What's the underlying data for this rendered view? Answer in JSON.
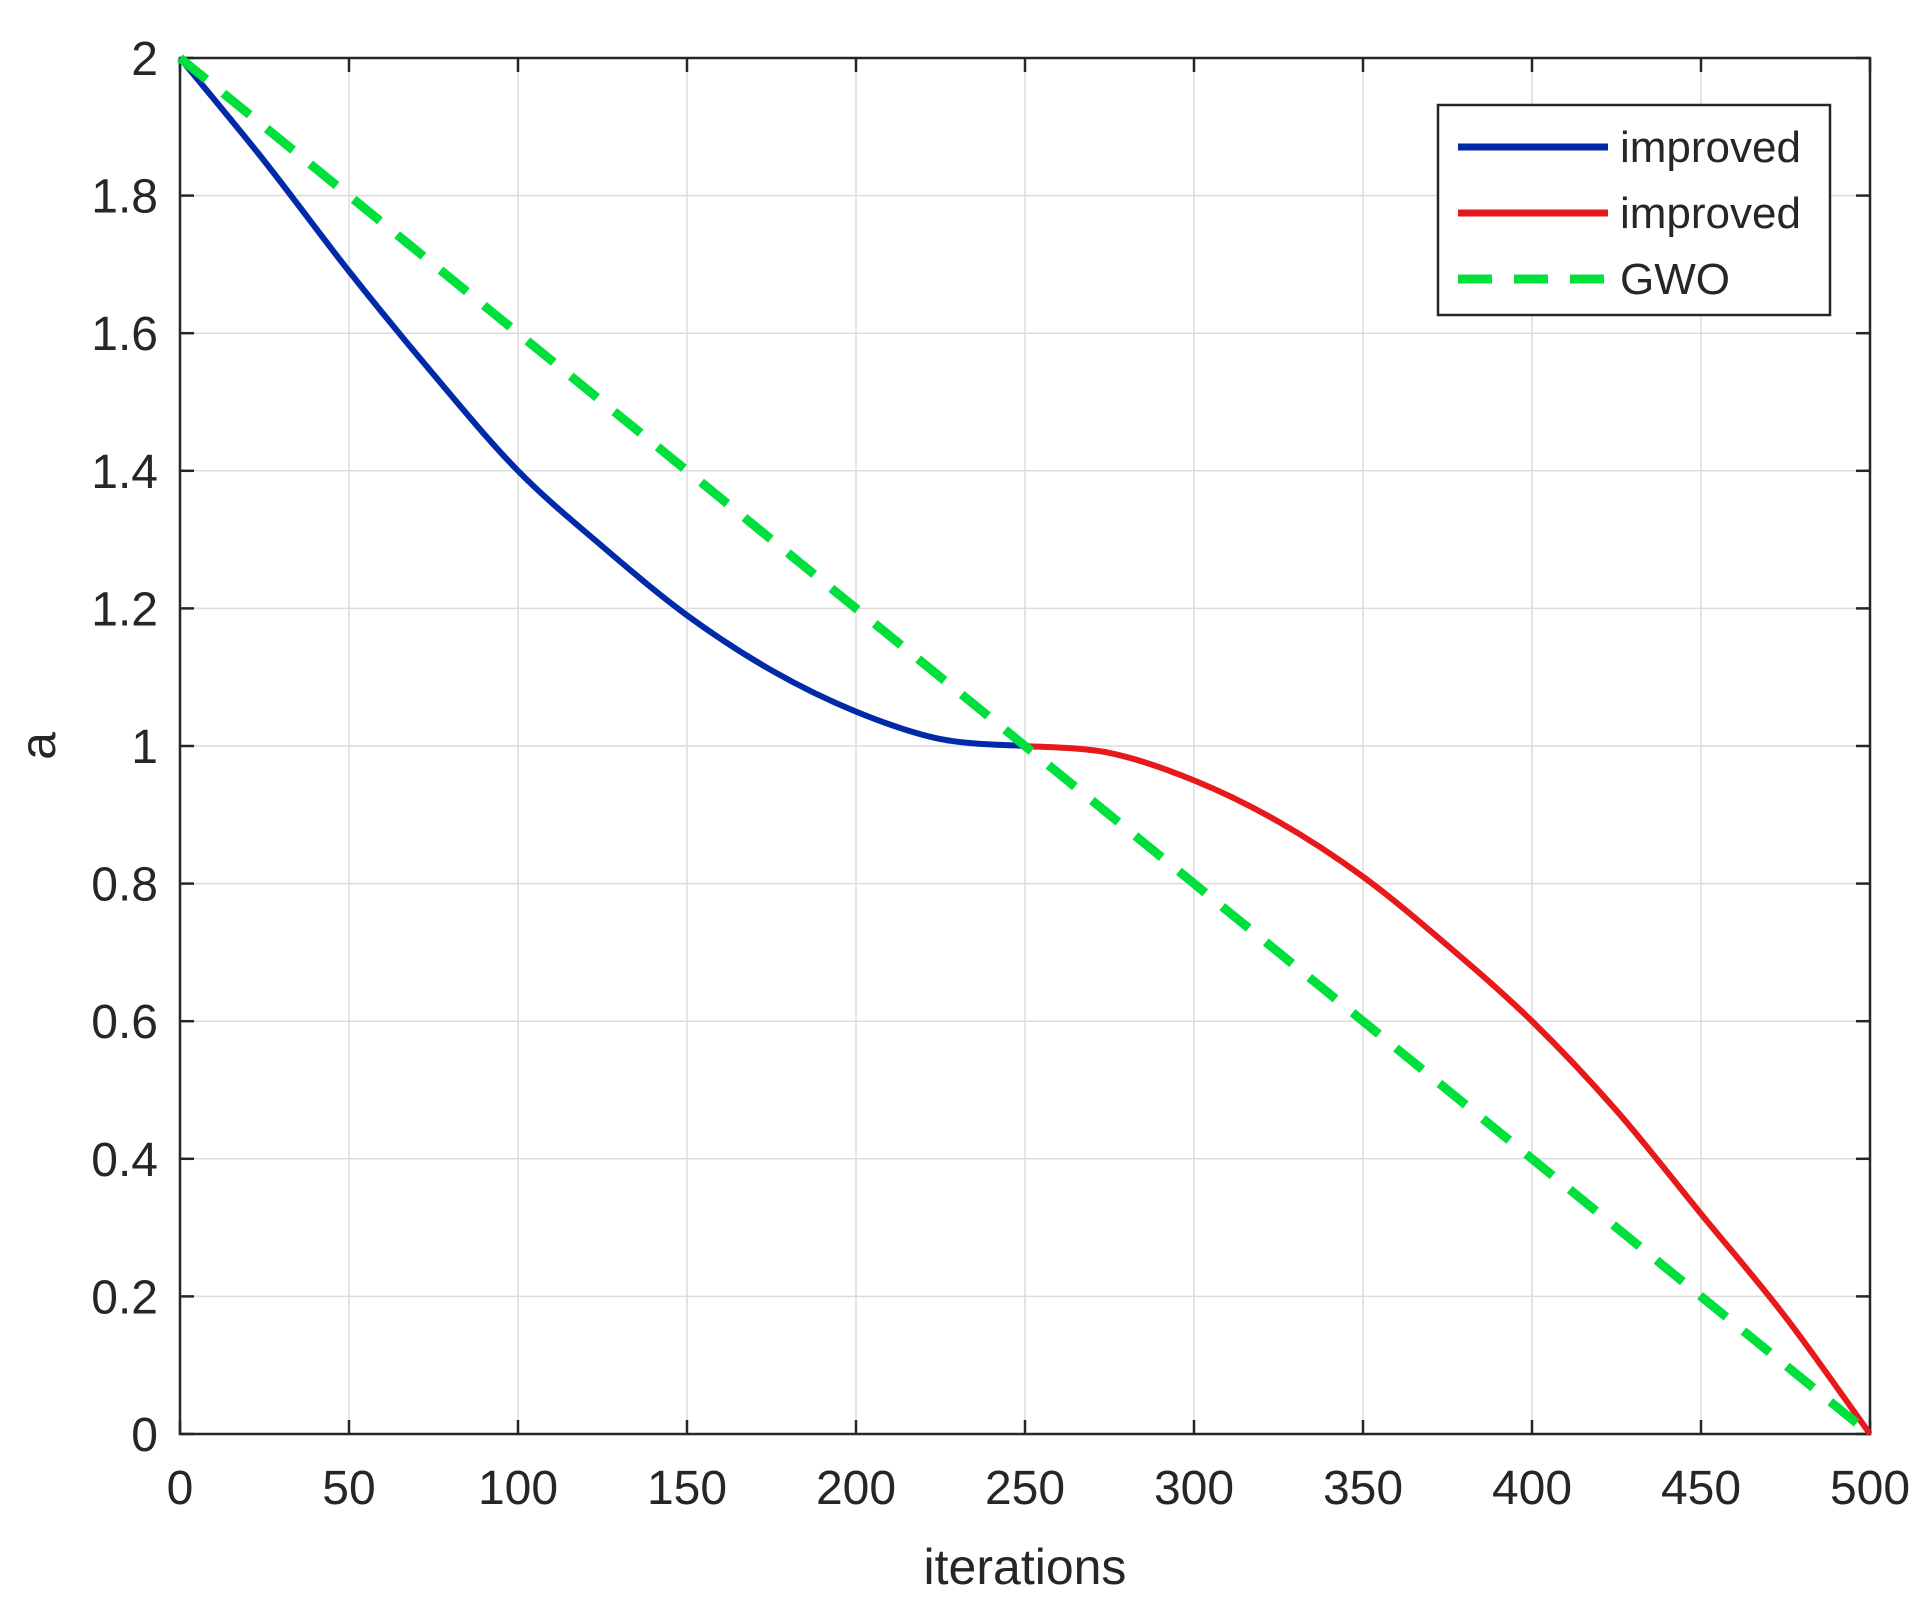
{
  "chart_data": {
    "type": "line",
    "title": "",
    "xlabel": "iterations",
    "ylabel": "a",
    "xlim": [
      0,
      500
    ],
    "ylim": [
      0,
      2
    ],
    "xticks": [
      0,
      50,
      100,
      150,
      200,
      250,
      300,
      350,
      400,
      450,
      500
    ],
    "yticks": [
      0,
      0.2,
      0.4,
      0.6,
      0.8,
      1,
      1.2,
      1.4,
      1.6,
      1.8,
      2
    ],
    "grid": true,
    "legend_position": "top-right",
    "series": [
      {
        "name": "improved",
        "color": "#002aa8",
        "style": "solid",
        "x": [
          0,
          25,
          50,
          75,
          100,
          125,
          150,
          175,
          200,
          225,
          250
        ],
        "y": [
          2.0,
          1.85,
          1.69,
          1.54,
          1.4,
          1.29,
          1.19,
          1.11,
          1.05,
          1.01,
          1.0
        ]
      },
      {
        "name": "improved",
        "color": "#e8191b",
        "style": "solid",
        "x": [
          250,
          275,
          300,
          325,
          350,
          375,
          400,
          425,
          450,
          475,
          500
        ],
        "y": [
          1.0,
          0.99,
          0.95,
          0.89,
          0.81,
          0.71,
          0.6,
          0.47,
          0.32,
          0.17,
          0.0
        ]
      },
      {
        "name": "GWO",
        "color": "#00e03c",
        "style": "dashed",
        "x": [
          0,
          500
        ],
        "y": [
          2.0,
          0.0
        ]
      }
    ]
  }
}
